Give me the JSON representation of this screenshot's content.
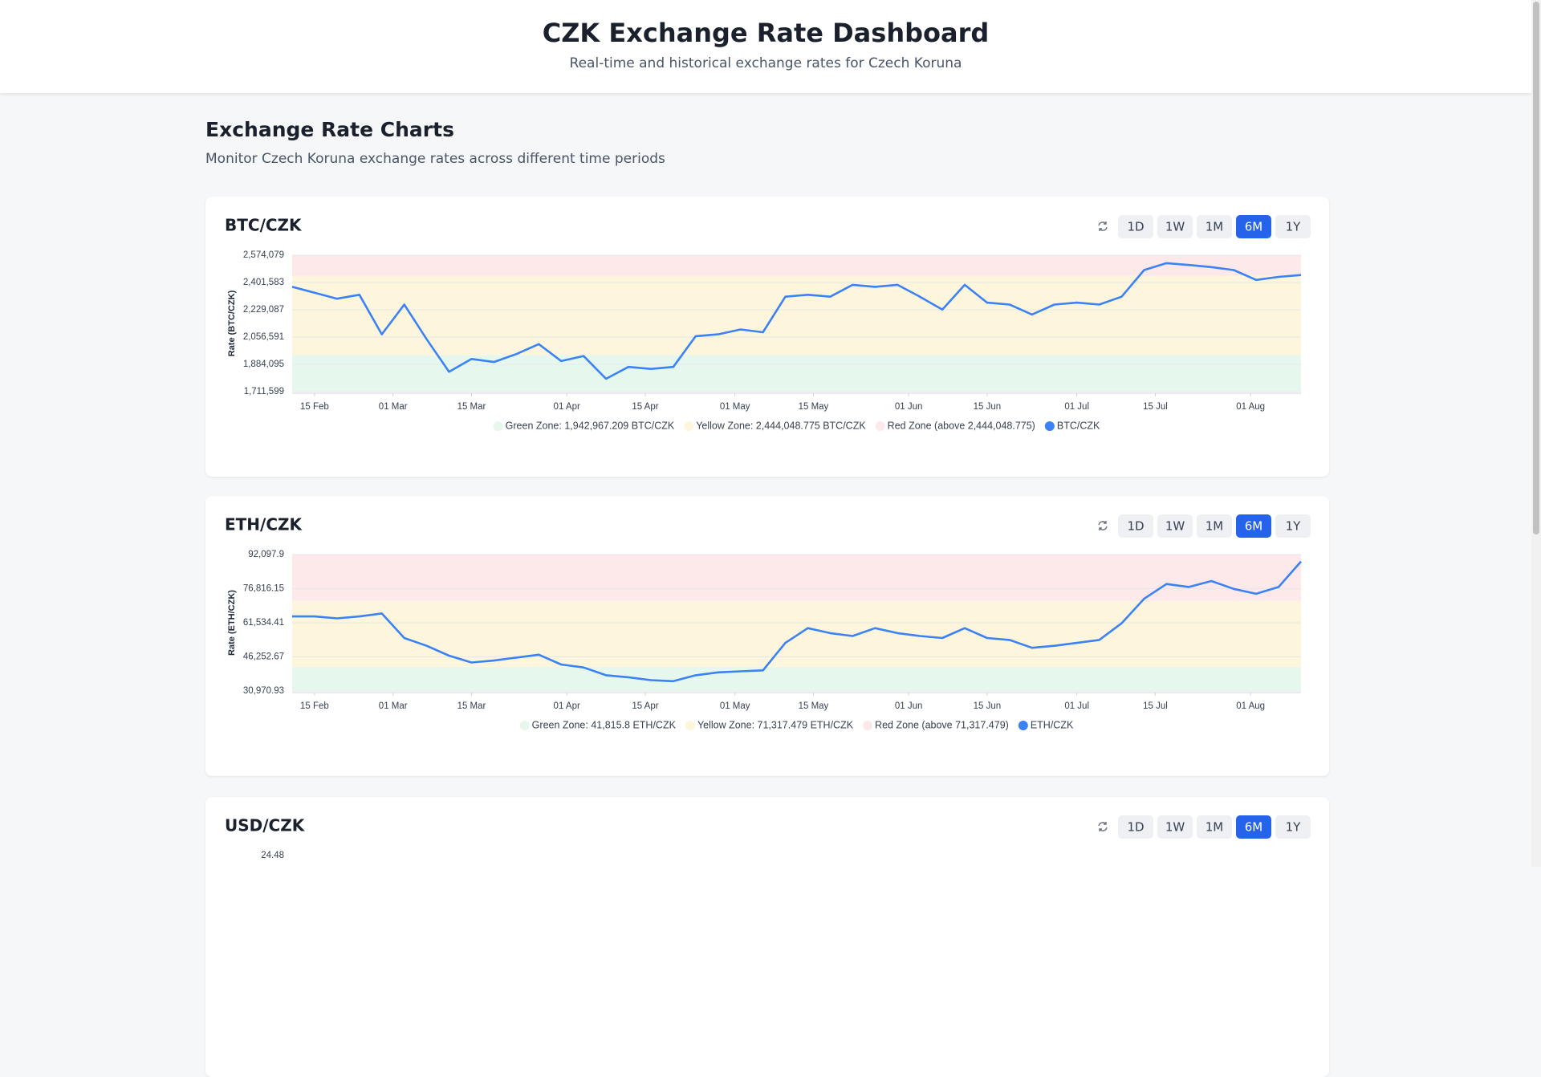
{
  "header": {
    "title": "CZK Exchange Rate Dashboard",
    "subtitle": "Real-time and historical exchange rates for Czech Koruna"
  },
  "section": {
    "title": "Exchange Rate Charts",
    "description": "Monitor Czech Koruna exchange rates across different time periods"
  },
  "chart_data": [
    {
      "type": "line",
      "title": "BTC/CZK",
      "buttons": [
        "1D",
        "1W",
        "1M",
        "6M",
        "1Y"
      ],
      "active_button": 3,
      "ylabel": "Rate (BTC/CZK)",
      "grid": true,
      "xlim": [
        -4,
        176
      ],
      "xticks": [
        {
          "value": 0,
          "label": "15 Feb"
        },
        {
          "value": 14,
          "label": "01 Mar"
        },
        {
          "value": 28,
          "label": "15 Mar"
        },
        {
          "value": 45,
          "label": "01 Apr"
        },
        {
          "value": 59,
          "label": "15 Apr"
        },
        {
          "value": 75,
          "label": "01 May"
        },
        {
          "value": 89,
          "label": "15 May"
        },
        {
          "value": 106,
          "label": "01 Jun"
        },
        {
          "value": 120,
          "label": "15 Jun"
        },
        {
          "value": 136,
          "label": "01 Jul"
        },
        {
          "value": 150,
          "label": "15 Jul"
        },
        {
          "value": 167,
          "label": "01 Aug"
        }
      ],
      "ylim": [
        1711599,
        2574079
      ],
      "yticks": [
        {
          "value": 1711599,
          "label": "1,711,599"
        },
        {
          "value": 1884095,
          "label": "1,884,095"
        },
        {
          "value": 2056591,
          "label": "2,056,591"
        },
        {
          "value": 2229087,
          "label": "2,229,087"
        },
        {
          "value": 2401583,
          "label": "2,401,583"
        },
        {
          "value": 2574079,
          "label": "2,574,079"
        }
      ],
      "zones": [
        {
          "label": "Green Zone: 1,942,967.209 BTC/CZK",
          "value": 1942967.209,
          "color": "#e6f8ee"
        },
        {
          "label": "Yellow Zone: 2,444,048.775 BTC/CZK",
          "value": 2444048.775,
          "color": "#fdf6dd"
        },
        {
          "label": "Red Zone (above 2,444,048.775)",
          "color": "#fde9ea"
        }
      ],
      "x": [
        -4,
        0,
        4,
        8,
        12,
        16,
        20,
        24,
        28,
        32,
        36,
        40,
        44,
        48,
        52,
        56,
        60,
        64,
        68,
        72,
        76,
        80,
        84,
        88,
        92,
        96,
        100,
        104,
        108,
        112,
        116,
        120,
        124,
        128,
        132,
        136,
        140,
        144,
        148,
        152,
        156,
        160,
        164,
        168,
        172,
        176
      ],
      "series": [
        {
          "name": "BTC/CZK",
          "color": "#3b82f6",
          "values": [
            2374000,
            2337000,
            2299000,
            2324000,
            2074000,
            2262000,
            2043000,
            1837000,
            1918000,
            1899000,
            1949000,
            2012000,
            1905000,
            1937000,
            1793000,
            1868000,
            1855000,
            1868000,
            2062000,
            2074000,
            2105000,
            2087000,
            2312000,
            2324000,
            2312000,
            2387000,
            2374000,
            2387000,
            2312000,
            2230000,
            2387000,
            2274000,
            2262000,
            2199000,
            2262000,
            2274000,
            2262000,
            2312000,
            2480000,
            2524000,
            2512000,
            2499000,
            2480000,
            2418000,
            2437000,
            2449000
          ]
        }
      ]
    },
    {
      "type": "line",
      "title": "ETH/CZK",
      "buttons": [
        "1D",
        "1W",
        "1M",
        "6M",
        "1Y"
      ],
      "active_button": 3,
      "ylabel": "Rate (ETH/CZK)",
      "grid": true,
      "xlim": [
        -4,
        176
      ],
      "xticks": [
        {
          "value": 0,
          "label": "15 Feb"
        },
        {
          "value": 14,
          "label": "01 Mar"
        },
        {
          "value": 28,
          "label": "15 Mar"
        },
        {
          "value": 45,
          "label": "01 Apr"
        },
        {
          "value": 59,
          "label": "15 Apr"
        },
        {
          "value": 75,
          "label": "01 May"
        },
        {
          "value": 89,
          "label": "15 May"
        },
        {
          "value": 106,
          "label": "01 Jun"
        },
        {
          "value": 120,
          "label": "15 Jun"
        },
        {
          "value": 136,
          "label": "01 Jul"
        },
        {
          "value": 150,
          "label": "15 Jul"
        },
        {
          "value": 167,
          "label": "01 Aug"
        }
      ],
      "ylim": [
        30970.93,
        92097.9
      ],
      "yticks": [
        {
          "value": 30970.93,
          "label": "30,970.93"
        },
        {
          "value": 46252.67,
          "label": "46,252.67"
        },
        {
          "value": 61534.41,
          "label": "61,534.41"
        },
        {
          "value": 76816.15,
          "label": "76,816.15"
        },
        {
          "value": 92097.9,
          "label": "92,097.9"
        }
      ],
      "zones": [
        {
          "label": "Green Zone: 41,815.8 ETH/CZK",
          "value": 41815.8,
          "color": "#e6f8ee"
        },
        {
          "label": "Yellow Zone: 71,317.479 ETH/CZK",
          "value": 71317.479,
          "color": "#fdf6dd"
        },
        {
          "label": "Red Zone (above 71,317.479)",
          "color": "#fde9ea"
        }
      ],
      "x": [
        -4,
        0,
        4,
        8,
        12,
        16,
        20,
        24,
        28,
        32,
        36,
        40,
        44,
        48,
        52,
        56,
        60,
        64,
        68,
        72,
        76,
        80,
        84,
        88,
        92,
        96,
        100,
        104,
        108,
        112,
        116,
        120,
        124,
        128,
        132,
        136,
        140,
        144,
        148,
        152,
        156,
        160,
        164,
        168,
        172,
        176
      ],
      "series": [
        {
          "name": "ETH/CZK",
          "color": "#3b82f6",
          "values": [
            64390,
            64390,
            63510,
            64390,
            65710,
            54710,
            51200,
            46800,
            43720,
            44600,
            45920,
            47240,
            42840,
            41520,
            38010,
            37130,
            35810,
            35370,
            38010,
            39330,
            39770,
            40210,
            52520,
            59110,
            56910,
            55590,
            59110,
            56910,
            55590,
            54710,
            59110,
            54710,
            53840,
            50320,
            51200,
            52520,
            53840,
            61310,
            72300,
            78900,
            77580,
            80220,
            76700,
            74500,
            77580,
            89010
          ]
        }
      ]
    },
    {
      "type": "line",
      "title": "USD/CZK",
      "buttons": [
        "1D",
        "1W",
        "1M",
        "6M",
        "1Y"
      ],
      "active_button": 3,
      "yticks": [
        24.48
      ]
    }
  ]
}
